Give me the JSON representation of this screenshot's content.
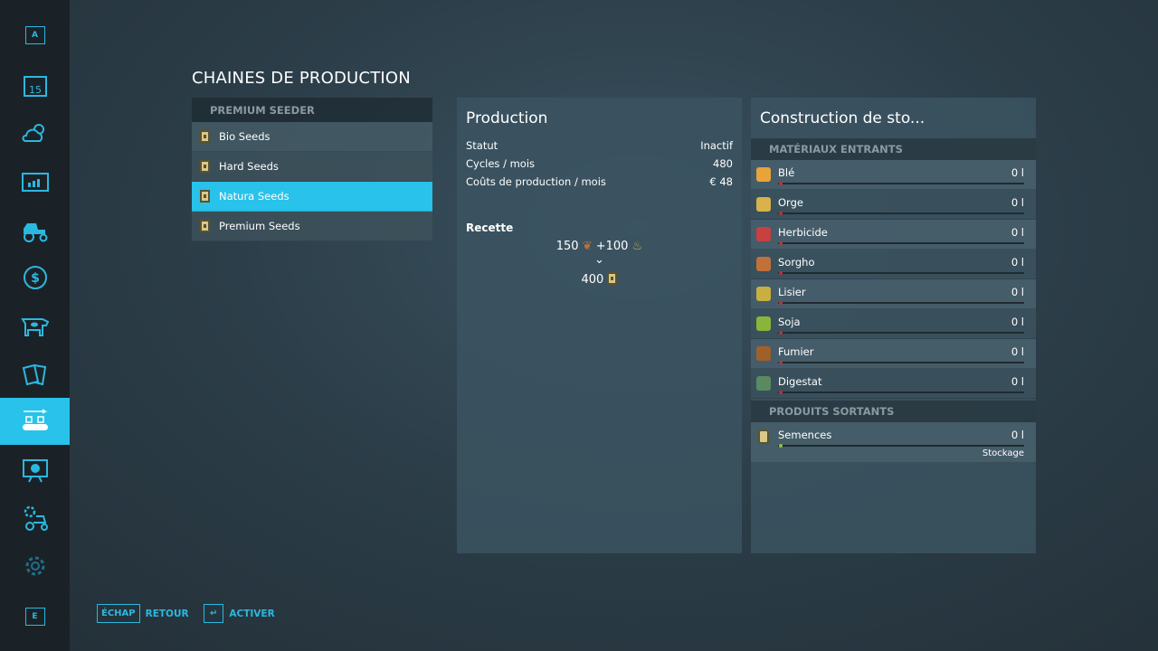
{
  "colors": {
    "accent": "#28c2ea",
    "bar_empty": "#c0303a",
    "bar_output": "#8bc34a"
  },
  "sidebar": {
    "top_key": "A",
    "bottom_key": "E",
    "items": [
      {
        "icon": "calendar-icon",
        "label": "15"
      },
      {
        "icon": "weather-icon"
      },
      {
        "icon": "statistics-icon"
      },
      {
        "icon": "tractor-icon"
      },
      {
        "icon": "finance-icon"
      },
      {
        "icon": "animals-icon"
      },
      {
        "icon": "contracts-icon"
      },
      {
        "icon": "production-icon",
        "active": true
      },
      {
        "icon": "presentation-icon"
      },
      {
        "icon": "vehicle-settings-icon"
      },
      {
        "icon": "settings-icon"
      }
    ]
  },
  "page_title": "CHAINES DE PRODUCTION",
  "production_list": {
    "header": "PREMIUM SEEDER",
    "items": [
      {
        "label": "Bio Seeds"
      },
      {
        "label": "Hard Seeds"
      },
      {
        "label": "Natura Seeds",
        "selected": true
      },
      {
        "label": "Premium Seeds"
      }
    ]
  },
  "production": {
    "title": "Production",
    "rows": [
      {
        "label": "Statut",
        "value": "Inactif"
      },
      {
        "label": "Cycles / mois",
        "value": "480"
      },
      {
        "label": "Coûts de production / mois",
        "value": "€ 48"
      }
    ],
    "recipe_title": "Recette",
    "recipe_in1": "150",
    "recipe_plus": "+100",
    "recipe_out": "400"
  },
  "storage": {
    "title": "Construction de sto...",
    "inputs_header": "MATÉRIAUX ENTRANTS",
    "inputs": [
      {
        "name": "Blé",
        "value": "0 l",
        "icon": "wheat-icon",
        "color": "#e8a33a"
      },
      {
        "name": "Orge",
        "value": "0 l",
        "icon": "barley-icon",
        "color": "#d8b24a"
      },
      {
        "name": "Herbicide",
        "value": "0 l",
        "icon": "herbicide-icon",
        "color": "#c84040"
      },
      {
        "name": "Sorgho",
        "value": "0 l",
        "icon": "sorghum-icon",
        "color": "#c0703a"
      },
      {
        "name": "Lisier",
        "value": "0 l",
        "icon": "slurry-icon",
        "color": "#c8b040"
      },
      {
        "name": "Soja",
        "value": "0 l",
        "icon": "soybean-icon",
        "color": "#8ab43a"
      },
      {
        "name": "Fumier",
        "value": "0 l",
        "icon": "manure-icon",
        "color": "#a0602a"
      },
      {
        "name": "Digestat",
        "value": "0 l",
        "icon": "digestate-icon",
        "color": "#5a8a60"
      }
    ],
    "outputs_header": "PRODUITS SORTANTS",
    "outputs": [
      {
        "name": "Semences",
        "value": "0 l",
        "icon": "seeds-icon",
        "mode": "Stockage"
      }
    ]
  },
  "footer": {
    "back_key": "ÉCHAP",
    "back_label": "RETOUR",
    "activate_key": "↵",
    "activate_label": "ACTIVER"
  }
}
